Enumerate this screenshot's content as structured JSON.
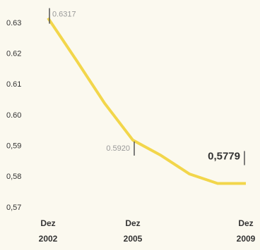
{
  "chart_data": {
    "type": "line",
    "x": [
      2002,
      2003,
      2004,
      2005,
      2006,
      2007,
      2008,
      2009
    ],
    "series": [
      {
        "color": "#f2d64b",
        "values": [
          0.6317,
          0.618,
          0.604,
          0.592,
          0.587,
          0.581,
          0.5779,
          0.5779
        ],
        "value_labels": [
          "0.6317",
          null,
          null,
          "0.5920",
          null,
          null,
          null,
          "0,5779"
        ]
      }
    ],
    "xlim": [
      2002,
      2009
    ],
    "xticks": [
      {
        "value": 2002,
        "label": "Dez 2002"
      },
      {
        "value": 2005,
        "label": "Dez 2005"
      },
      {
        "value": 2009,
        "label": "Dez 2009"
      }
    ],
    "ylim": [
      0.57,
      0.63
    ],
    "yticks": [
      0.63,
      0.62,
      0.61,
      {
        "value": 0.6,
        "label": "0.60"
      },
      {
        "value": 0.59,
        "label": "0,59"
      },
      {
        "value": 0.58,
        "label": "0,58"
      },
      {
        "value": 0.57,
        "label": "0,57"
      }
    ]
  }
}
